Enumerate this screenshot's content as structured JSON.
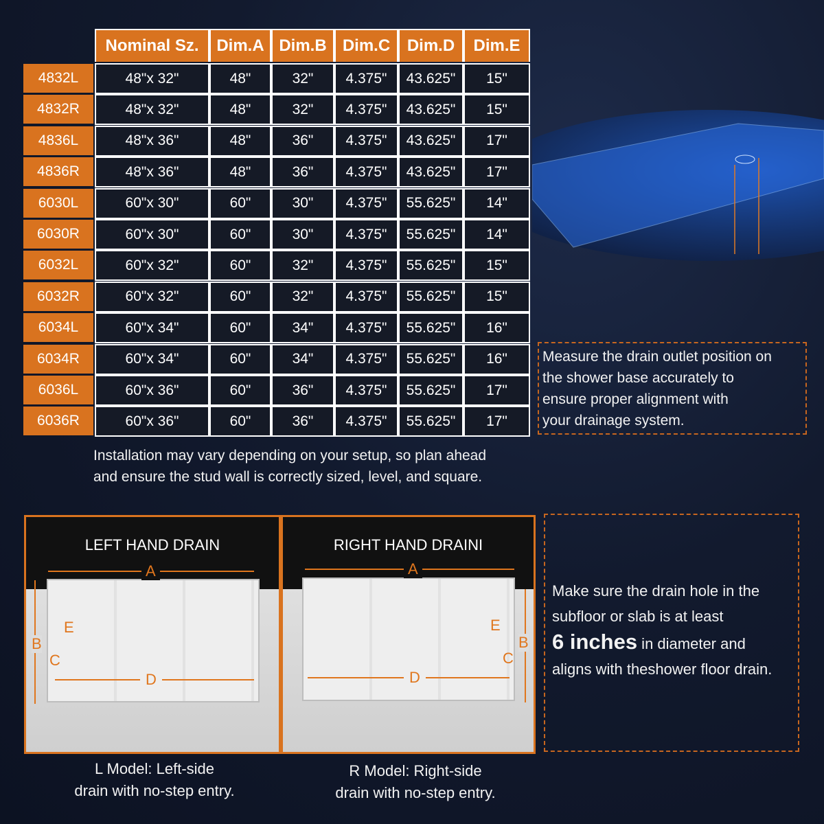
{
  "table": {
    "headers": [
      "Nominal Sz.",
      "Dim.A",
      "Dim.B",
      "Dim.C",
      "Dim.D",
      "Dim.E"
    ],
    "rows": [
      {
        "model": "4832L",
        "cells": [
          "48\"x 32\"",
          "48\"",
          "32\"",
          "4.375\"",
          "43.625\"",
          "15\""
        ]
      },
      {
        "model": "4832R",
        "cells": [
          "48\"x 32\"",
          "48\"",
          "32\"",
          "4.375\"",
          "43.625\"",
          "15\""
        ]
      },
      {
        "model": "4836L",
        "cells": [
          "48\"x 36\"",
          "48\"",
          "36\"",
          "4.375\"",
          "43.625\"",
          "17\""
        ]
      },
      {
        "model": "4836R",
        "cells": [
          "48\"x 36\"",
          "48\"",
          "36\"",
          "4.375\"",
          "43.625\"",
          "17\""
        ]
      },
      {
        "model": "6030L",
        "cells": [
          "60\"x 30\"",
          "60\"",
          "30\"",
          "4.375\"",
          "55.625\"",
          "14\""
        ]
      },
      {
        "model": "6030R",
        "cells": [
          "60\"x 30\"",
          "60\"",
          "30\"",
          "4.375\"",
          "55.625\"",
          "14\""
        ]
      },
      {
        "model": "6032L",
        "cells": [
          "60\"x 32\"",
          "60\"",
          "32\"",
          "4.375\"",
          "55.625\"",
          "15\""
        ]
      },
      {
        "model": "6032R",
        "cells": [
          "60\"x 32\"",
          "60\"",
          "32\"",
          "4.375\"",
          "55.625\"",
          "15\""
        ]
      },
      {
        "model": "6034L",
        "cells": [
          "60\"x 34\"",
          "60\"",
          "34\"",
          "4.375\"",
          "55.625\"",
          "16\""
        ]
      },
      {
        "model": "6034R",
        "cells": [
          "60\"x 34\"",
          "60\"",
          "34\"",
          "4.375\"",
          "55.625\"",
          "16\""
        ]
      },
      {
        "model": "6036L",
        "cells": [
          "60\"x 36\"",
          "60\"",
          "36\"",
          "4.375\"",
          "55.625\"",
          "17\""
        ]
      },
      {
        "model": "6036R",
        "cells": [
          "60\"x 36\"",
          "60\"",
          "36\"",
          "4.375\"",
          "55.625\"",
          "17\""
        ]
      }
    ]
  },
  "install_note": [
    "Installation may vary depending on your setup, so plan ahead",
    "and ensure the stud wall is correctly sized, level, and square."
  ],
  "measure_note": [
    "Measure the drain outlet position on",
    "the shower base accurately to",
    "ensure proper alignment with",
    "your drainage system."
  ],
  "drain_note": {
    "line1": "Make sure the drain hole in the",
    "line2": "subfloor or slab is at least",
    "bold": "6 inches",
    "after_bold": " in diameter and",
    "line4": "aligns with theshower floor drain."
  },
  "left_panel": {
    "title": "LEFT HAND DRAIN",
    "labels": {
      "a": "A",
      "b": "B",
      "c": "C",
      "d": "D",
      "e": "E"
    },
    "caption": [
      "L Model: Left-side",
      "drain with no-step entry."
    ]
  },
  "right_panel": {
    "title": "RIGHT HAND DRAINI",
    "labels": {
      "a": "A",
      "b": "B",
      "c": "C",
      "d": "D",
      "e": "E"
    },
    "caption": [
      "R Model: Right-side",
      "drain with no-step entry."
    ]
  },
  "colors": {
    "accent": "#d9731f",
    "background": "#121a2e",
    "cell": "#151a26"
  }
}
